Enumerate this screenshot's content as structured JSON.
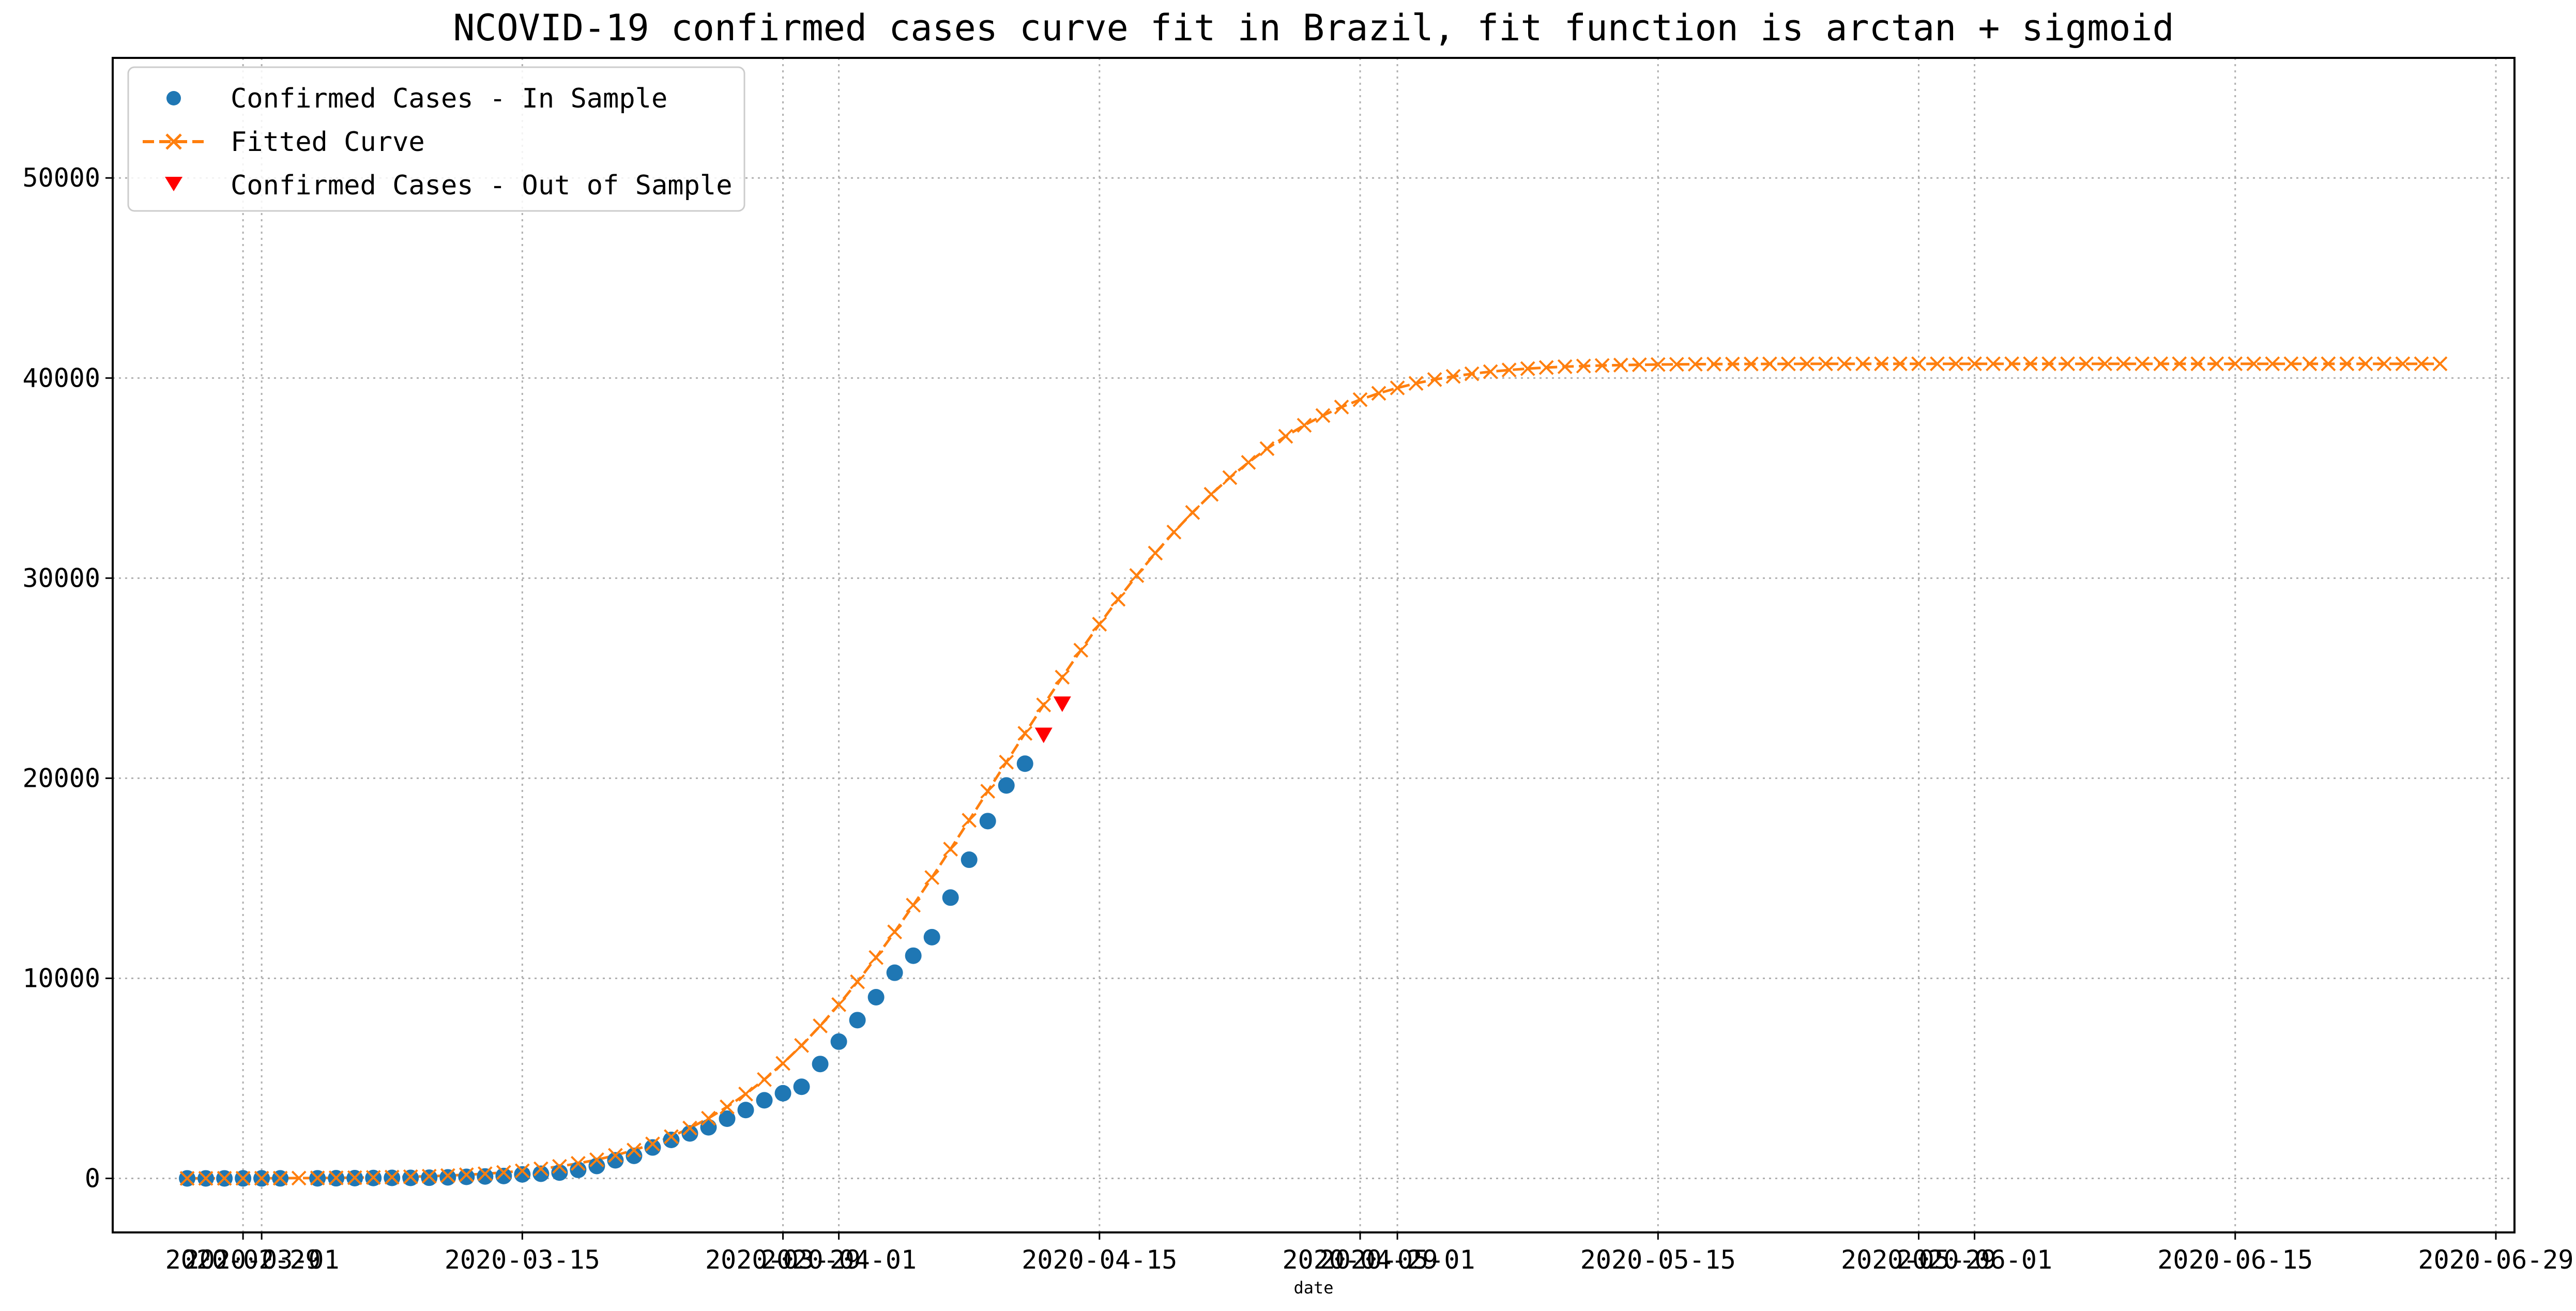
{
  "chart_data": {
    "type": "line",
    "title": "NCOVID-19 confirmed cases curve fit in Brazil, fit function is arctan + sigmoid",
    "xlabel": "date",
    "ylabel": "",
    "xlim": [
      "2020-02-22",
      "2020-06-30"
    ],
    "ylim": [
      -2700,
      56000
    ],
    "grid": true,
    "legend_position": "top-left",
    "x_ticks": [
      "2020-02-29",
      "2020-03-01",
      "2020-03-15",
      "2020-03-29",
      "2020-04-01",
      "2020-04-15",
      "2020-04-29",
      "2020-05-01",
      "2020-05-15",
      "2020-05-29",
      "2020-06-01",
      "2020-06-15",
      "2020-06-29"
    ],
    "x_tick_labels": [
      "2020-02-29",
      "2020-03-01",
      "2020-03-15",
      "2020-03-29",
      "2020-04-01",
      "2020-04-15",
      "2020-04-29",
      "2020-05-01",
      "2020-05-15",
      "2020-05-29",
      "2020-06-01",
      "2020-06-15",
      "2020-06-29"
    ],
    "y_ticks": [
      0,
      10000,
      20000,
      30000,
      40000,
      50000
    ],
    "y_tick_labels": [
      "0",
      "10000",
      "20000",
      "30000",
      "40000",
      "50000"
    ],
    "colors": {
      "in_sample": "#1f77b4",
      "fitted": "#ff7f0e",
      "out_sample": "#ff0000",
      "grid": "#b0b0b0"
    },
    "series": [
      {
        "name": "Confirmed Cases - In Sample",
        "style": "circle-marker",
        "x": [
          "2020-02-26",
          "2020-02-27",
          "2020-02-28",
          "2020-02-29",
          "2020-03-01",
          "2020-03-02",
          "2020-03-04",
          "2020-03-05",
          "2020-03-06",
          "2020-03-07",
          "2020-03-08",
          "2020-03-09",
          "2020-03-10",
          "2020-03-11",
          "2020-03-12",
          "2020-03-13",
          "2020-03-14",
          "2020-03-15",
          "2020-03-16",
          "2020-03-17",
          "2020-03-18",
          "2020-03-19",
          "2020-03-20",
          "2020-03-21",
          "2020-03-22",
          "2020-03-23",
          "2020-03-24",
          "2020-03-25",
          "2020-03-26",
          "2020-03-27",
          "2020-03-28",
          "2020-03-29",
          "2020-03-30",
          "2020-03-31",
          "2020-04-01",
          "2020-04-02",
          "2020-04-03",
          "2020-04-04",
          "2020-04-05",
          "2020-04-06",
          "2020-04-07",
          "2020-04-08",
          "2020-04-09",
          "2020-04-10",
          "2020-04-11"
        ],
        "y": [
          1,
          1,
          1,
          2,
          2,
          2,
          4,
          8,
          13,
          19,
          25,
          25,
          34,
          52,
          77,
          98,
          121,
          200,
          234,
          291,
          428,
          621,
          904,
          1128,
          1546,
          1924,
          2247,
          2554,
          2985,
          3417,
          3904,
          4256,
          4579,
          5717,
          6836,
          7910,
          9056,
          10278,
          11130,
          12056,
          14034,
          15927,
          17857,
          19638,
          20727
        ]
      },
      {
        "name": "Fitted Curve",
        "style": "dashed-x",
        "x": [
          "2020-02-26",
          "2020-02-27",
          "2020-02-28",
          "2020-02-29",
          "2020-03-01",
          "2020-03-02",
          "2020-03-03",
          "2020-03-04",
          "2020-03-05",
          "2020-03-06",
          "2020-03-07",
          "2020-03-08",
          "2020-03-09",
          "2020-03-10",
          "2020-03-11",
          "2020-03-12",
          "2020-03-13",
          "2020-03-14",
          "2020-03-15",
          "2020-03-16",
          "2020-03-17",
          "2020-03-18",
          "2020-03-19",
          "2020-03-20",
          "2020-03-21",
          "2020-03-22",
          "2020-03-23",
          "2020-03-24",
          "2020-03-25",
          "2020-03-26",
          "2020-03-27",
          "2020-03-28",
          "2020-03-29",
          "2020-03-30",
          "2020-03-31",
          "2020-04-01",
          "2020-04-02",
          "2020-04-03",
          "2020-04-04",
          "2020-04-05",
          "2020-04-06",
          "2020-04-07",
          "2020-04-08",
          "2020-04-09",
          "2020-04-10",
          "2020-04-11",
          "2020-04-12",
          "2020-04-13",
          "2020-04-14",
          "2020-04-15",
          "2020-04-16",
          "2020-04-17",
          "2020-04-18",
          "2020-04-19",
          "2020-04-20",
          "2020-04-21",
          "2020-04-22",
          "2020-04-23",
          "2020-04-24",
          "2020-04-25",
          "2020-04-26",
          "2020-04-27",
          "2020-04-28",
          "2020-04-29",
          "2020-04-30",
          "2020-05-01",
          "2020-05-02",
          "2020-05-03",
          "2020-05-04",
          "2020-05-05",
          "2020-05-06",
          "2020-05-07",
          "2020-05-08",
          "2020-05-09",
          "2020-05-10",
          "2020-05-11",
          "2020-05-12",
          "2020-05-13",
          "2020-05-14",
          "2020-05-15",
          "2020-05-16",
          "2020-05-17",
          "2020-05-18",
          "2020-05-19",
          "2020-05-20",
          "2020-05-21",
          "2020-05-22",
          "2020-05-23",
          "2020-05-24",
          "2020-05-25",
          "2020-05-26",
          "2020-05-27",
          "2020-05-28",
          "2020-05-29",
          "2020-05-30",
          "2020-05-31",
          "2020-06-01",
          "2020-06-02",
          "2020-06-03",
          "2020-06-04",
          "2020-06-05",
          "2020-06-06",
          "2020-06-07",
          "2020-06-08",
          "2020-06-09",
          "2020-06-10",
          "2020-06-11",
          "2020-06-12",
          "2020-06-13",
          "2020-06-14",
          "2020-06-15",
          "2020-06-16",
          "2020-06-17",
          "2020-06-18",
          "2020-06-19",
          "2020-06-20",
          "2020-06-21",
          "2020-06-22",
          "2020-06-23",
          "2020-06-24",
          "2020-06-25",
          "2020-06-26"
        ],
        "y": [
          2,
          3,
          4,
          6,
          8,
          11,
          15,
          20,
          27,
          36,
          48,
          63,
          83,
          108,
          141,
          182,
          233,
          298,
          378,
          478,
          600,
          750,
          932,
          1151,
          1413,
          1723,
          2088,
          2514,
          3007,
          3573,
          4216,
          4941,
          5750,
          6644,
          7623,
          8685,
          9825,
          11039,
          12318,
          13654,
          15037,
          16455,
          17897,
          19350,
          20803,
          22244,
          23663,
          25050,
          26398,
          27698,
          28944,
          30129,
          31250,
          32302,
          33282,
          34190,
          35024,
          35784,
          36472,
          37090,
          37640,
          38126,
          38551,
          38920,
          39237,
          39507,
          39735,
          39925,
          40083,
          40212,
          40318,
          40403,
          40471,
          40525,
          40568,
          40602,
          40628,
          40648,
          40664,
          40676,
          40685,
          40692,
          40697,
          40701,
          40704,
          40706,
          40708,
          40709,
          40710,
          40711,
          40711,
          40712,
          40712,
          40712,
          40712,
          40712,
          40712,
          40712,
          40712,
          40712,
          40712,
          40712,
          40712,
          40712,
          40712,
          40712,
          40712,
          40712,
          40712,
          40712,
          40712,
          40712,
          40712,
          40712,
          40712,
          40712,
          40712,
          40712,
          40712,
          40712,
          40712,
          40712
        ]
      },
      {
        "name": "Confirmed Cases - Out of Sample",
        "style": "triangle-down",
        "x": [
          "2020-04-12",
          "2020-04-13"
        ],
        "y": [
          22169,
          23723
        ]
      }
    ]
  }
}
